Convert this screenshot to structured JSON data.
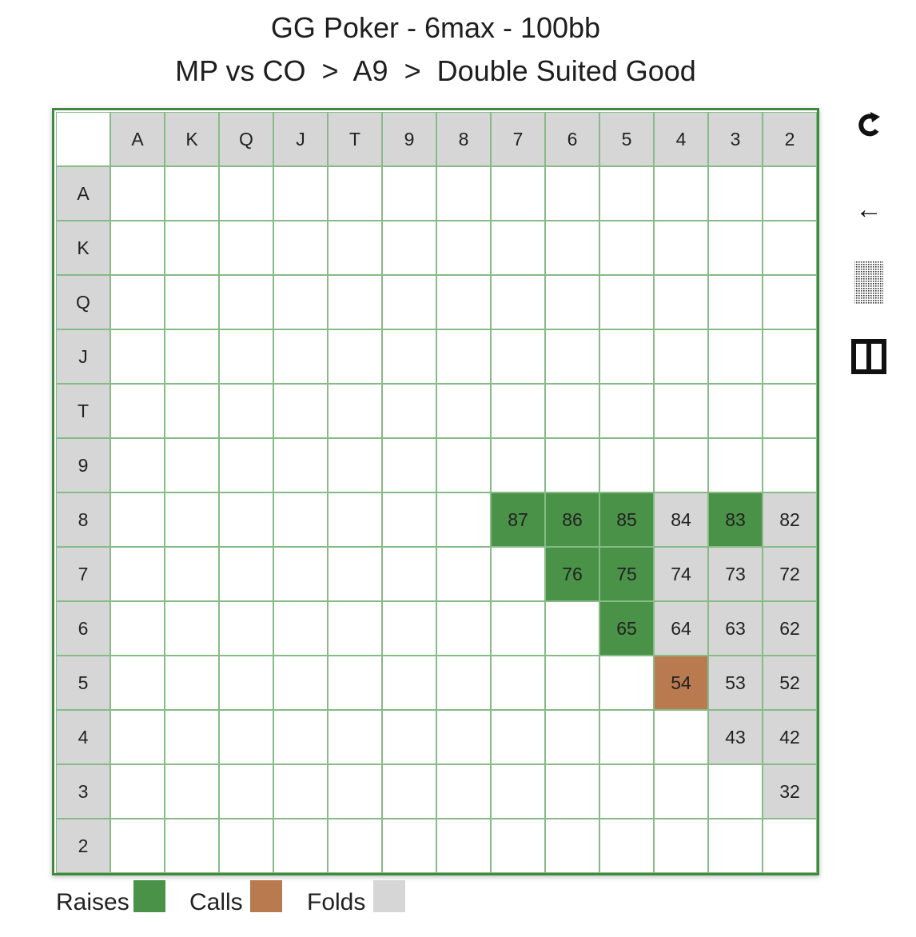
{
  "title": {
    "line1": "GG Poker - 6max - 100bb",
    "line2": "MP vs CO  >  A9  >  Double Suited Good"
  },
  "ranks": [
    "A",
    "K",
    "Q",
    "J",
    "T",
    "9",
    "8",
    "7",
    "6",
    "5",
    "4",
    "3",
    "2"
  ],
  "colors": {
    "raise": "#4a9247",
    "call": "#ba7a50",
    "fold": "#d6d6d6",
    "grid_line": "#86bb86",
    "board_border": "#3e8a3e"
  },
  "cells": [
    {
      "label": "87",
      "row": "8",
      "col": "7",
      "action": "raise"
    },
    {
      "label": "86",
      "row": "8",
      "col": "6",
      "action": "raise"
    },
    {
      "label": "85",
      "row": "8",
      "col": "5",
      "action": "raise"
    },
    {
      "label": "84",
      "row": "8",
      "col": "4",
      "action": "fold"
    },
    {
      "label": "83",
      "row": "8",
      "col": "3",
      "action": "raise"
    },
    {
      "label": "82",
      "row": "8",
      "col": "2",
      "action": "fold"
    },
    {
      "label": "76",
      "row": "7",
      "col": "6",
      "action": "raise"
    },
    {
      "label": "75",
      "row": "7",
      "col": "5",
      "action": "raise"
    },
    {
      "label": "74",
      "row": "7",
      "col": "4",
      "action": "fold"
    },
    {
      "label": "73",
      "row": "7",
      "col": "3",
      "action": "fold"
    },
    {
      "label": "72",
      "row": "7",
      "col": "2",
      "action": "fold"
    },
    {
      "label": "65",
      "row": "6",
      "col": "5",
      "action": "raise"
    },
    {
      "label": "64",
      "row": "6",
      "col": "4",
      "action": "fold"
    },
    {
      "label": "63",
      "row": "6",
      "col": "3",
      "action": "fold"
    },
    {
      "label": "62",
      "row": "6",
      "col": "2",
      "action": "fold"
    },
    {
      "label": "54",
      "row": "5",
      "col": "4",
      "action": "call"
    },
    {
      "label": "53",
      "row": "5",
      "col": "3",
      "action": "fold"
    },
    {
      "label": "52",
      "row": "5",
      "col": "2",
      "action": "fold"
    },
    {
      "label": "43",
      "row": "4",
      "col": "3",
      "action": "fold"
    },
    {
      "label": "42",
      "row": "4",
      "col": "2",
      "action": "fold"
    },
    {
      "label": "32",
      "row": "3",
      "col": "2",
      "action": "fold"
    }
  ],
  "toolbar": {
    "icons": [
      "refresh-icon",
      "back-arrow-icon",
      "dotted-pattern-icon",
      "split-view-icon"
    ],
    "back_glyph": "←"
  },
  "legend": {
    "raises": "Raises",
    "calls": "Calls",
    "folds": "Folds"
  }
}
